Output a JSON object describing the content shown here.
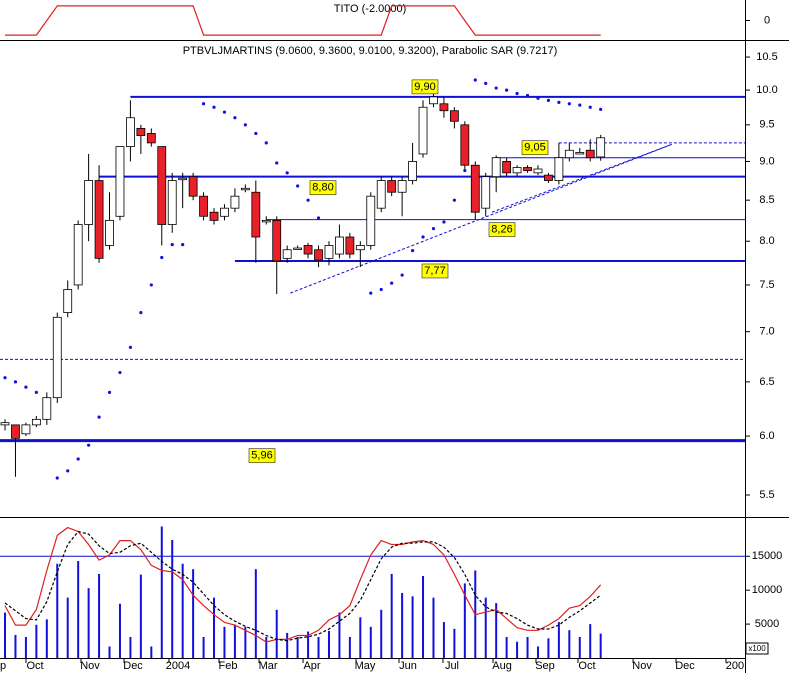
{
  "chart_data": [
    {
      "type": "line",
      "title": "TITO (-2.0000)",
      "color": "#e02020",
      "x": [
        0,
        1,
        2,
        3,
        4,
        5,
        6,
        7,
        8,
        9,
        10,
        11,
        12,
        13,
        14,
        15,
        16,
        17,
        18,
        19,
        20,
        21,
        22,
        23,
        24,
        25,
        26,
        27,
        28,
        29,
        30,
        31,
        32,
        33,
        34,
        35,
        36,
        37,
        38,
        39,
        40,
        41,
        42,
        43,
        44,
        45,
        46,
        47,
        48,
        49,
        50,
        51,
        52,
        53,
        54,
        55,
        56,
        57
      ],
      "values": [
        -2,
        -2,
        -2,
        -2,
        0,
        2,
        2,
        2,
        2,
        2,
        2,
        2,
        2,
        2,
        2,
        2,
        2,
        2,
        2,
        -2,
        -2,
        -2,
        -2,
        -2,
        -2,
        -2,
        -2,
        -2,
        -2,
        -2,
        -2,
        -2,
        -2,
        -2,
        -2,
        -2,
        -2,
        2,
        2,
        2,
        2,
        2,
        2,
        2,
        0,
        -2,
        -2,
        -2,
        -2,
        -2,
        -2,
        -2,
        -2,
        -2,
        -2,
        -2,
        -2,
        -2
      ],
      "xlim": [
        -0.48,
        70.81
      ],
      "ylim": [
        -2.4,
        2.4
      ],
      "yticks": [
        0
      ]
    },
    {
      "type": "candlestick",
      "title": "PTBVLJMARTINS (9.0600, 9.3600, 9.0100, 9.3200), Parabolic SAR (9.7217)",
      "log_scale": true,
      "up_color": "#ffffff",
      "down_color": "#e8202a",
      "sar_color": "#1010e0",
      "x": [
        0,
        1,
        2,
        3,
        4,
        5,
        6,
        7,
        8,
        9,
        10,
        11,
        12,
        13,
        14,
        15,
        16,
        17,
        18,
        19,
        20,
        21,
        22,
        23,
        24,
        25,
        26,
        27,
        28,
        29,
        30,
        31,
        32,
        33,
        34,
        35,
        36,
        37,
        38,
        39,
        40,
        41,
        42,
        43,
        44,
        45,
        46,
        47,
        48,
        49,
        50,
        51,
        52,
        53,
        54,
        55,
        56,
        57
      ],
      "open": [
        6.1,
        6.1,
        6.02,
        6.1,
        6.15,
        6.35,
        7.2,
        7.5,
        8.2,
        8.75,
        7.95,
        8.3,
        9.2,
        9.45,
        9.38,
        9.2,
        8.2,
        8.78,
        8.8,
        8.55,
        8.35,
        8.3,
        8.4,
        8.65,
        8.6,
        8.25,
        8.25,
        7.8,
        7.92,
        7.95,
        7.9,
        7.8,
        7.85,
        8.05,
        7.9,
        7.95,
        8.4,
        8.75,
        8.6,
        8.75,
        9.1,
        9.8,
        9.8,
        9.7,
        9.5,
        8.95,
        8.4,
        8.8,
        9.0,
        8.85,
        8.92,
        8.85,
        8.82,
        8.75,
        9.05,
        9.12,
        9.15,
        9.06
      ],
      "high": [
        6.15,
        6.1,
        6.12,
        6.18,
        6.4,
        7.2,
        7.55,
        8.25,
        9.1,
        8.95,
        8.6,
        9.2,
        9.85,
        9.5,
        9.45,
        9.2,
        8.85,
        8.85,
        8.85,
        8.6,
        8.4,
        8.45,
        8.65,
        8.7,
        8.75,
        8.3,
        8.3,
        7.95,
        7.95,
        7.98,
        7.95,
        8.0,
        8.2,
        8.1,
        8.0,
        8.6,
        8.8,
        8.8,
        8.8,
        9.25,
        9.85,
        10.1,
        9.9,
        9.75,
        9.55,
        9.0,
        8.85,
        9.08,
        9.05,
        8.95,
        8.95,
        8.95,
        8.85,
        9.25,
        9.25,
        9.18,
        9.3,
        9.36
      ],
      "low": [
        6.05,
        5.65,
        6.0,
        6.08,
        6.1,
        6.3,
        7.15,
        7.45,
        8.0,
        7.75,
        7.9,
        8.25,
        9.0,
        9.1,
        9.2,
        7.95,
        8.1,
        8.4,
        8.5,
        8.25,
        8.2,
        8.25,
        8.35,
        8.6,
        7.75,
        8.2,
        7.4,
        7.75,
        7.9,
        7.8,
        7.7,
        7.72,
        7.8,
        7.8,
        7.7,
        7.9,
        8.35,
        8.55,
        8.3,
        8.7,
        9.05,
        9.75,
        9.6,
        9.45,
        8.9,
        8.26,
        8.3,
        8.6,
        8.8,
        8.8,
        8.85,
        8.82,
        8.72,
        8.7,
        9.0,
        9.1,
        9.0,
        9.01
      ],
      "close": [
        6.12,
        5.98,
        6.1,
        6.15,
        6.35,
        7.15,
        7.45,
        8.2,
        8.75,
        7.8,
        8.25,
        9.2,
        9.6,
        9.35,
        9.25,
        8.2,
        8.75,
        8.78,
        8.55,
        8.3,
        8.25,
        8.4,
        8.55,
        8.65,
        8.05,
        8.25,
        7.77,
        7.9,
        7.92,
        7.85,
        7.78,
        7.95,
        8.05,
        7.85,
        7.95,
        8.55,
        8.75,
        8.6,
        8.75,
        9.0,
        9.75,
        9.9,
        9.7,
        9.55,
        8.95,
        8.35,
        8.8,
        9.05,
        8.85,
        8.92,
        8.88,
        8.9,
        8.75,
        9.05,
        9.15,
        9.12,
        9.05,
        9.32
      ],
      "sar": [
        6.54,
        6.5,
        6.45,
        6.4,
        null,
        5.64,
        5.7,
        5.8,
        5.92,
        6.17,
        6.4,
        6.59,
        6.84,
        7.2,
        7.5,
        7.81,
        7.96,
        7.96,
        null,
        9.8,
        9.75,
        9.68,
        9.6,
        9.5,
        9.38,
        9.25,
        8.98,
        8.85,
        8.68,
        8.5,
        8.28,
        null,
        null,
        null,
        null,
        7.41,
        7.45,
        7.52,
        7.61,
        7.89,
        8.05,
        8.15,
        8.23,
        8.5,
        8.88,
        10.15,
        10.1,
        10.03,
        10.0,
        9.95,
        9.92,
        9.88,
        9.85,
        9.82,
        9.8,
        9.78,
        9.75,
        9.72
      ],
      "xlim": [
        -0.48,
        70.81
      ],
      "ylim": [
        5.34,
        10.72
      ],
      "yticks": [
        5.5,
        {
          "value": 6,
          "label": "6.0"
        },
        6.5,
        {
          "value": 7,
          "label": "7.0"
        },
        7.5,
        {
          "value": 8,
          "label": "8.0"
        },
        8.5,
        {
          "value": 9,
          "label": "9.0"
        },
        9.5,
        {
          "value": 10,
          "label": "10.0"
        },
        10.5
      ],
      "level_color": "#1010d0",
      "levels": [
        {
          "value": 9.9,
          "label": "9,90",
          "from": 12,
          "weight": "thick",
          "style": "solid"
        },
        {
          "value": 8.8,
          "label": "8,80",
          "from": 9,
          "weight": "thick",
          "style": "solid"
        },
        {
          "value": 8.26,
          "label": "8,26",
          "from": 25,
          "weight": "thin",
          "style": "solid"
        },
        {
          "value": 7.77,
          "label": "7,77",
          "from": 22,
          "weight": "thick",
          "style": "solid"
        },
        {
          "value": 5.96,
          "label": "5,96",
          "from": -0.48,
          "weight": "heavy",
          "style": "solid"
        },
        {
          "value": 9.05,
          "label": "9,05",
          "from": 47,
          "weight": "thin",
          "style": "solid"
        },
        {
          "value": 6.72,
          "from": -0.48,
          "weight": "thin",
          "style": "dashed"
        },
        {
          "value": 9.25,
          "from": 53,
          "weight": "thin",
          "style": "dashed"
        }
      ],
      "trendlines": [
        {
          "from": [
            27.3,
            7.41
          ],
          "to": [
            63.8,
            9.23
          ]
        },
        {
          "from": [
            46.6,
            8.35
          ],
          "to": [
            63.8,
            9.23
          ]
        }
      ]
    },
    {
      "type": "volume",
      "color": "#1010e0",
      "unit_label": "x100",
      "reference_line": 15000,
      "x": [
        0,
        1,
        2,
        3,
        4,
        5,
        6,
        7,
        8,
        9,
        10,
        11,
        12,
        13,
        14,
        15,
        16,
        17,
        18,
        19,
        20,
        21,
        22,
        23,
        24,
        25,
        26,
        27,
        28,
        29,
        30,
        31,
        32,
        33,
        34,
        35,
        36,
        37,
        38,
        39,
        40,
        41,
        42,
        43,
        44,
        45,
        46,
        47,
        48,
        49,
        50,
        51,
        52,
        53,
        54,
        55,
        56,
        57
      ],
      "values": [
        6700,
        3400,
        3100,
        4900,
        5700,
        13900,
        8900,
        14300,
        10300,
        12400,
        1700,
        8000,
        3100,
        12300,
        1700,
        19400,
        17400,
        13900,
        13100,
        3100,
        8900,
        4600,
        4900,
        4600,
        13100,
        3100,
        7100,
        3700,
        3100,
        3900,
        3100,
        4000,
        6700,
        3100,
        6000,
        4600,
        7100,
        12400,
        9600,
        9100,
        12100,
        8900,
        5300,
        4300,
        11000,
        12900,
        8900,
        8100,
        3100,
        2400,
        3100,
        1700,
        2900,
        5300,
        4100,
        3100,
        5000,
        3600
      ],
      "series": [
        {
          "color": "#e02020",
          "style": "solid",
          "axis": "y2",
          "values": [
            38,
            23,
            23,
            35,
            65,
            92,
            98,
            95,
            85,
            73,
            77,
            88,
            88,
            81,
            69,
            65,
            64,
            58,
            46,
            38,
            31,
            25,
            23,
            19,
            15,
            10,
            12,
            12,
            15,
            15,
            19,
            27,
            31,
            38,
            58,
            77,
            88,
            85,
            85,
            87,
            88,
            85,
            77,
            62,
            46,
            31,
            33,
            35,
            28,
            21,
            19,
            19,
            23,
            28,
            36,
            38,
            45,
            54
          ]
        },
        {
          "color": "#000000",
          "style": "dashed",
          "axis": "y2",
          "values": [
            40,
            34,
            28,
            27,
            41,
            64,
            85,
            95,
            93,
            84,
            78,
            79,
            84,
            86,
            79,
            72,
            66,
            62,
            56,
            47,
            38,
            31,
            26,
            22,
            19,
            15,
            12,
            11,
            13,
            14,
            16,
            20,
            26,
            32,
            42,
            58,
            74,
            83,
            86,
            86,
            87,
            87,
            83,
            75,
            62,
            46,
            37,
            33,
            32,
            28,
            23,
            20,
            20,
            23,
            29,
            34,
            40,
            46
          ]
        }
      ],
      "xlim": [
        -0.48,
        70.81
      ],
      "ylim": [
        0,
        20500
      ],
      "yticks": [
        5000,
        10000,
        15000
      ],
      "y2lim": [
        0,
        100
      ],
      "xticks": [
        {
          "value": -0.19,
          "label": "p"
        },
        {
          "value": 2.87,
          "label": "Oct"
        },
        {
          "value": 8.13,
          "label": "Nov"
        },
        {
          "value": 12.25,
          "label": "Dec"
        },
        {
          "value": 16.55,
          "label": "2004"
        },
        {
          "value": 21.34,
          "label": "Feb"
        },
        {
          "value": 25.17,
          "label": "Mar"
        },
        {
          "value": 29.38,
          "label": "Apr"
        },
        {
          "value": 34.45,
          "label": "May"
        },
        {
          "value": 38.56,
          "label": "Jun"
        },
        {
          "value": 42.77,
          "label": "Jul"
        },
        {
          "value": 47.56,
          "label": "Aug"
        },
        {
          "value": 51.67,
          "label": "Sep"
        },
        {
          "value": 55.69,
          "label": "Oct"
        },
        {
          "value": 60.96,
          "label": "Nov"
        },
        {
          "value": 65.07,
          "label": "Dec"
        },
        {
          "value": 69.85,
          "label": "200"
        }
      ]
    }
  ]
}
